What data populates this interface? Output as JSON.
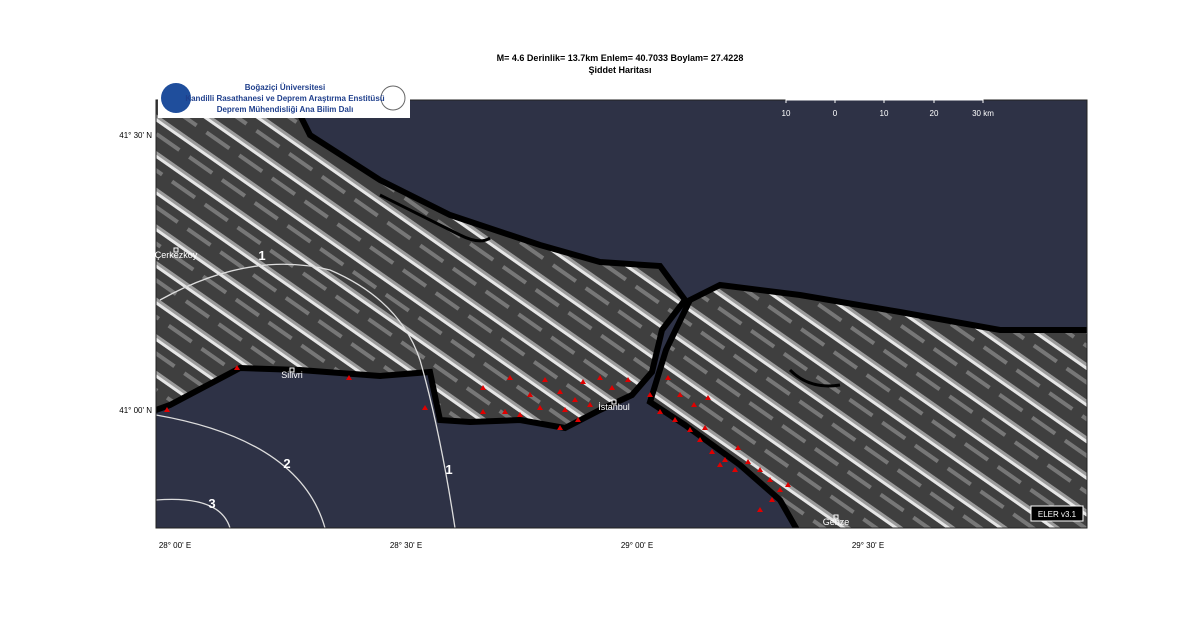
{
  "header": {
    "title": "M= 4.6  Derinlik= 13.7km Enlem= 40.7033  Boylam= 27.4228",
    "subtitle": "Şiddet Haritası"
  },
  "logo": {
    "line1": "Boğaziçi Üniversitesi",
    "line2": "Kandilli Rasathanesi ve Deprem Araştırma Enstitüsü",
    "line3": "Deprem Mühendisliği Ana Bilim Dalı"
  },
  "scale_bar": {
    "labels": [
      "10",
      "0",
      "10",
      "20",
      "30 km"
    ]
  },
  "axes": {
    "lat_labels": [
      "41° 30' N",
      "41° 00' N"
    ],
    "lon_labels": [
      "28° 00' E",
      "28° 30' E",
      "29° 00' E",
      "29° 30' E"
    ]
  },
  "cities": [
    "Çerkezkoy",
    "Silivri",
    "İstanbul",
    "Gebze"
  ],
  "contours": [
    "1",
    "2",
    "1",
    "3"
  ],
  "version": "ELER v3.1"
}
